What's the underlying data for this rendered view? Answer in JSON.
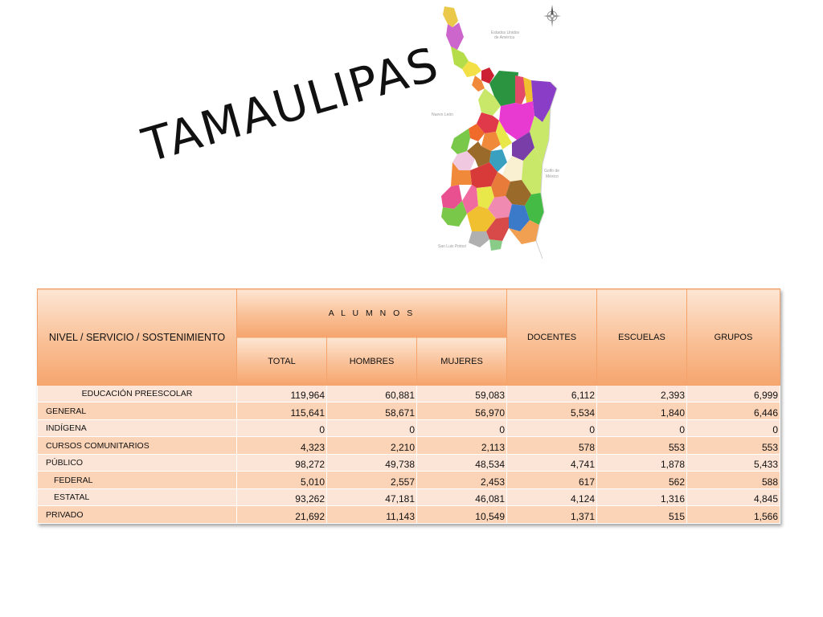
{
  "title": "TAMAULIPAS",
  "map": {
    "labels": {
      "north": [
        "Estados Unidos",
        "de América"
      ],
      "west": "Nuevo León",
      "east": [
        "Golfo de",
        "México"
      ],
      "south": "San Luis Potosí"
    },
    "icon": "compass-rose-icon"
  },
  "table": {
    "header": {
      "nivel": "NIVEL / SERVICIO / SOSTENIMIENTO",
      "alumnos": "A L U M N O S",
      "total": "TOTAL",
      "hombres": "HOMBRES",
      "mujeres": "MUJERES",
      "docentes": "DOCENTES",
      "escuelas": "ESCUELAS",
      "grupos": "GRUPOS"
    },
    "rows": [
      {
        "label": "EDUCACIÓN PREESCOLAR",
        "total": "119,964",
        "hombres": "60,881",
        "mujeres": "59,083",
        "docentes": "6,112",
        "escuelas": "2,393",
        "grupos": "6,999"
      },
      {
        "label": "GENERAL",
        "total": "115,641",
        "hombres": "58,671",
        "mujeres": "56,970",
        "docentes": "5,534",
        "escuelas": "1,840",
        "grupos": "6,446"
      },
      {
        "label": "INDÍGENA",
        "total": "0",
        "hombres": "0",
        "mujeres": "0",
        "docentes": "0",
        "escuelas": "0",
        "grupos": "0"
      },
      {
        "label": "CURSOS COMUNITARIOS",
        "total": "4,323",
        "hombres": "2,210",
        "mujeres": "2,113",
        "docentes": "578",
        "escuelas": "553",
        "grupos": "553"
      },
      {
        "label": "PÚBLICO",
        "total": "98,272",
        "hombres": "49,738",
        "mujeres": "48,534",
        "docentes": "4,741",
        "escuelas": "1,878",
        "grupos": "5,433"
      },
      {
        "label": "FEDERAL",
        "total": "5,010",
        "hombres": "2,557",
        "mujeres": "2,453",
        "docentes": "617",
        "escuelas": "562",
        "grupos": "588"
      },
      {
        "label": "ESTATAL",
        "total": "93,262",
        "hombres": "47,181",
        "mujeres": "46,081",
        "docentes": "4,124",
        "escuelas": "1,316",
        "grupos": "4,845"
      },
      {
        "label": "PRIVADO",
        "total": "21,692",
        "hombres": "11,143",
        "mujeres": "10,549",
        "docentes": "1,371",
        "escuelas": "515",
        "grupos": "1,566"
      }
    ]
  }
}
